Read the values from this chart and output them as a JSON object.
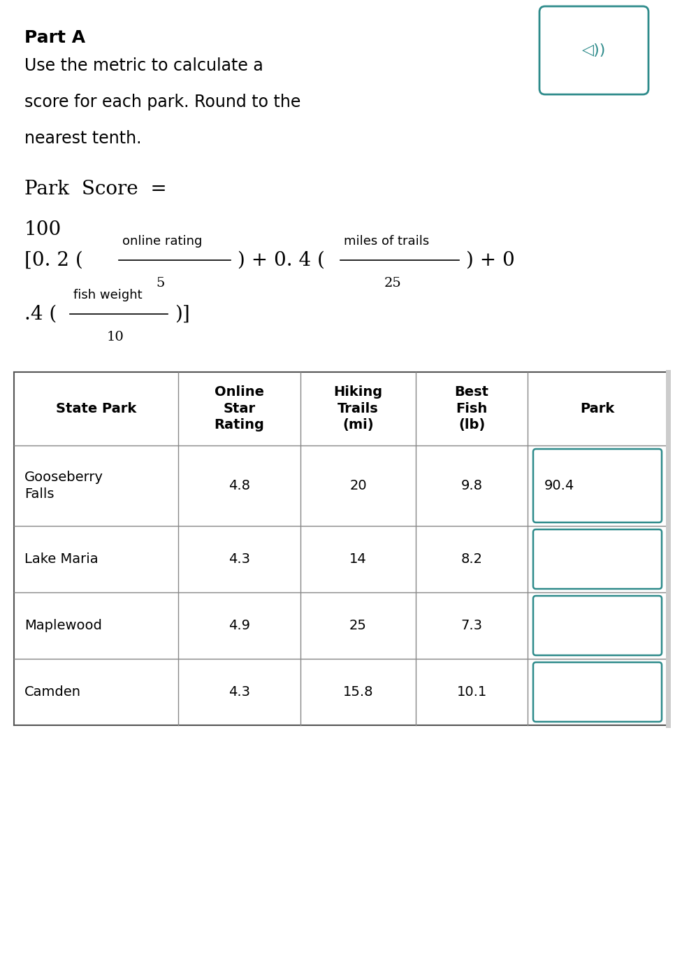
{
  "title_bold": "Part A",
  "description_lines": [
    "Use the metric to calculate a",
    "score for each park. Round to the",
    "nearest tenth."
  ],
  "formula_line1": "Park  Score  =",
  "formula_line2": "100",
  "formula_bracket_open": "[0. 2 (",
  "formula_frac1_num": "online rating",
  "formula_frac1_den": "5",
  "formula_mid": ") + 0. 4 (",
  "formula_frac2_num": "miles of trails",
  "formula_frac2_den": "25",
  "formula_right": ") + 0",
  "formula_line4_left": ".4 (",
  "formula_frac3_num": "fish weight",
  "formula_frac3_den": "10",
  "formula_line4_right": ")]",
  "table_headers": [
    "State Park",
    "Online\nStar\nRating",
    "Hiking\nTrails\n(mi)",
    "Best\nFish\n(lb)",
    "Park"
  ],
  "table_data": [
    [
      "Gooseberry\nFalls",
      "4.8",
      "20",
      "9.8",
      "90.4"
    ],
    [
      "Lake Maria",
      "4.3",
      "14",
      "8.2",
      ""
    ],
    [
      "Maplewood",
      "4.9",
      "25",
      "7.3",
      ""
    ],
    [
      "Camden",
      "4.3",
      "15.8",
      "10.1",
      ""
    ]
  ],
  "bg_color": "#ffffff",
  "text_color": "#000000",
  "table_border_color": "#555555",
  "table_inner_color": "#888888",
  "answer_box_color": "#2e8b8b",
  "speaker_icon_color": "#2e8b8b",
  "scrollbar_color": "#cccccc"
}
